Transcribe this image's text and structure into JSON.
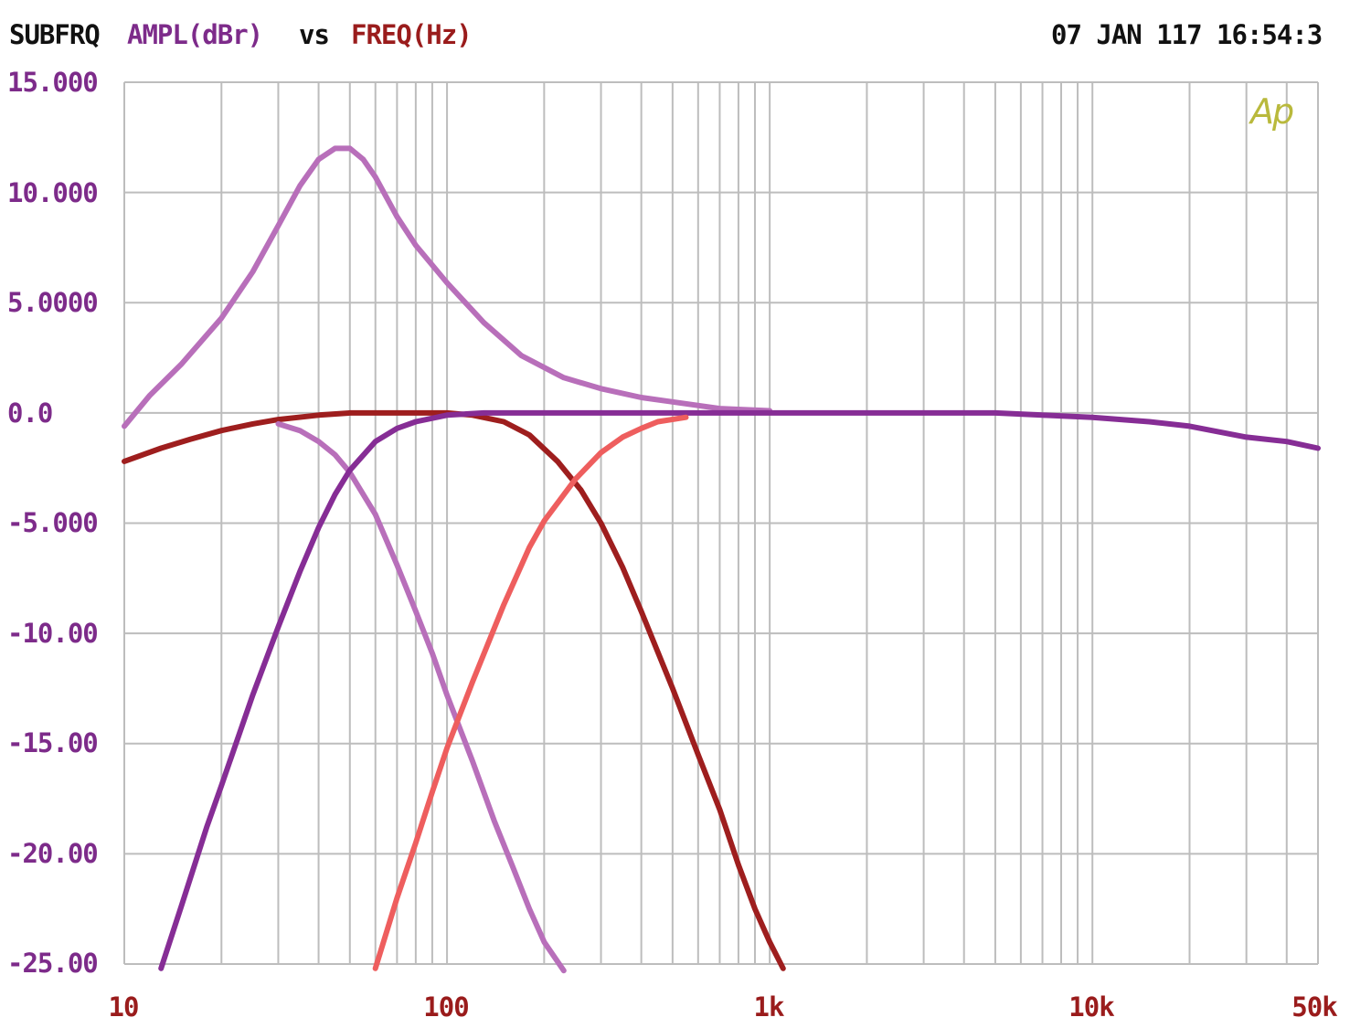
{
  "header": {
    "analyzer_name": "SUBFRQ",
    "y_quantity": "AMPL(dBr)",
    "vs_word": "vs",
    "x_quantity": "FREQ(Hz)",
    "timestamp": "07 JAN 117 16:54:3"
  },
  "logo_text": "Ap",
  "colors": {
    "black_text": "#111111",
    "purple_text": "#7d2b8a",
    "red_text": "#9a1c1c",
    "grid": "#bdbdbd",
    "logo": "#b9b93c"
  },
  "chart_data": {
    "type": "line",
    "x_scale": "log",
    "xlim": [
      10,
      50000
    ],
    "ylim": [
      -25,
      15
    ],
    "grid": true,
    "y_ticks": [
      "15.000",
      "10.000",
      "5.0000",
      "0.0",
      "-5.000",
      "-10.00",
      "-15.00",
      "-20.00",
      "-25.00"
    ],
    "y_tick_values": [
      15,
      10,
      5,
      0,
      -5,
      -10,
      -15,
      -20,
      -25
    ],
    "x_ticks": [
      "10",
      "100",
      "1k",
      "10k",
      "50k"
    ],
    "x_tick_values": [
      10,
      100,
      1000,
      10000,
      50000
    ],
    "series": [
      {
        "color": "#b86fba",
        "x": [
          10,
          12,
          15,
          20,
          25,
          30,
          35,
          40,
          45,
          50,
          55,
          60,
          70,
          80,
          100,
          130,
          170,
          230,
          300,
          400,
          500,
          700,
          1000
        ],
        "y": [
          -0.6,
          0.8,
          2.2,
          4.3,
          6.4,
          8.5,
          10.3,
          11.5,
          12.0,
          12.0,
          11.5,
          10.7,
          8.9,
          7.6,
          5.9,
          4.1,
          2.6,
          1.6,
          1.1,
          0.7,
          0.5,
          0.2,
          0.1
        ]
      },
      {
        "color": "#9e1e1e",
        "x": [
          10,
          13,
          16,
          20,
          25,
          30,
          40,
          50,
          60,
          80,
          100,
          120,
          150,
          180,
          220,
          260,
          300,
          350,
          400,
          500,
          600,
          700,
          800,
          900,
          1000,
          1100
        ],
        "y": [
          -2.2,
          -1.6,
          -1.2,
          -0.8,
          -0.5,
          -0.3,
          -0.1,
          0.0,
          0.0,
          0.0,
          0.0,
          -0.1,
          -0.4,
          -1.0,
          -2.2,
          -3.5,
          -5.0,
          -7.0,
          -9.0,
          -12.5,
          -15.5,
          -18.0,
          -20.5,
          -22.5,
          -24.0,
          -25.2
        ]
      },
      {
        "color": "#b86fba",
        "x": [
          30,
          35,
          40,
          45,
          50,
          60,
          70,
          80,
          90,
          100,
          120,
          140,
          160,
          180,
          200,
          230
        ],
        "y": [
          -0.5,
          -0.8,
          -1.3,
          -1.9,
          -2.7,
          -4.6,
          -6.9,
          -9.0,
          -10.9,
          -12.8,
          -15.8,
          -18.5,
          -20.6,
          -22.5,
          -24.0,
          -25.3
        ]
      },
      {
        "color": "#862d95",
        "x": [
          13,
          15,
          18,
          20,
          25,
          30,
          35,
          40,
          45,
          50,
          60,
          70,
          80,
          100,
          130,
          200,
          500,
          1000,
          2000,
          5000,
          7000,
          10000,
          15000,
          20000,
          30000,
          40000,
          50000
        ],
        "y": [
          -25.2,
          -22.4,
          -18.8,
          -16.9,
          -12.8,
          -9.7,
          -7.2,
          -5.2,
          -3.7,
          -2.6,
          -1.3,
          -0.7,
          -0.4,
          -0.1,
          0.0,
          0.0,
          0.0,
          0.0,
          0.0,
          0.0,
          -0.1,
          -0.2,
          -0.4,
          -0.6,
          -1.1,
          -1.3,
          -1.6
        ]
      },
      {
        "color": "#ee5e5e",
        "x": [
          60,
          70,
          80,
          90,
          100,
          120,
          150,
          180,
          200,
          250,
          300,
          350,
          400,
          450,
          550
        ],
        "y": [
          -25.2,
          -22.0,
          -19.5,
          -17.2,
          -15.2,
          -12.2,
          -8.7,
          -6.1,
          -4.9,
          -3.0,
          -1.8,
          -1.1,
          -0.7,
          -0.4,
          -0.2
        ]
      }
    ]
  }
}
